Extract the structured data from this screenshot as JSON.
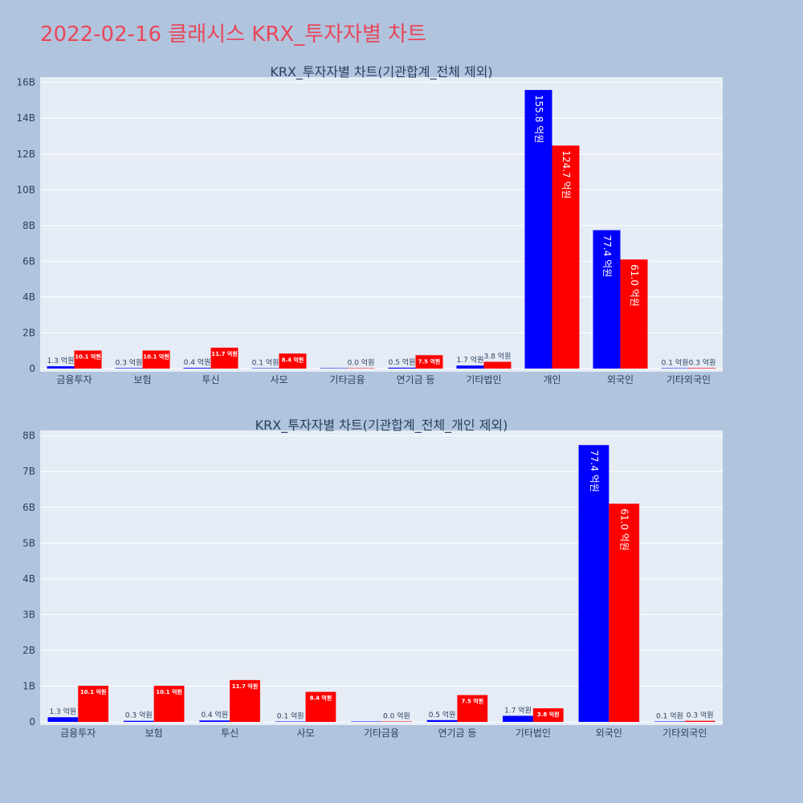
{
  "page": {
    "title": "2022-02-16 클래시스 KRX_투자자별 차트"
  },
  "colors": {
    "buy": "#0000ff",
    "sell": "#ff0000",
    "plot_bg": "#e5ecf6",
    "page_bg": "#b0c4de",
    "title": "#e8475a"
  },
  "chart_data": [
    {
      "type": "bar",
      "title": "KRX_투자자별 차트(기관합계_전체 제외)",
      "categories": [
        "금융투자",
        "보험",
        "투신",
        "사모",
        "기타금융",
        "연기금 등",
        "기타법인",
        "개인",
        "외국인",
        "기타외국인"
      ],
      "series": [
        {
          "values": [
            0.13,
            0.03,
            0.04,
            0.01,
            0.0,
            0.05,
            0.17,
            15.58,
            7.74,
            0.01
          ],
          "labels": [
            "1.3 억원",
            "0.3 억원",
            "0.4 억원",
            "0.1 억원",
            "",
            "0.5 억원",
            "1.7 억원",
            "155.8 억원",
            "77.4 억원",
            "0.1 억원"
          ]
        },
        {
          "values": [
            1.01,
            1.01,
            1.17,
            0.84,
            0.0,
            0.75,
            0.38,
            12.47,
            6.1,
            0.03
          ],
          "labels": [
            "10.1 억원",
            "10.1 억원",
            "11.7 억원",
            "8.4 억원",
            "0.0 억원",
            "7.5 억원",
            "3.8 억원",
            "124.7 억원",
            "61.0 억원",
            "0.3 억원"
          ]
        }
      ],
      "ylim": [
        0,
        16.3
      ],
      "yticks": [
        0,
        2,
        4,
        6,
        8,
        10,
        12,
        14,
        16
      ],
      "ytick_labels": [
        "0",
        "2B",
        "4B",
        "6B",
        "8B",
        "10B",
        "12B",
        "14B",
        "16B"
      ],
      "grid": true
    },
    {
      "type": "bar",
      "title": "KRX_투자자별 차트(기관합계_전체_개인 제외)",
      "categories": [
        "금융투자",
        "보험",
        "투신",
        "사모",
        "기타금융",
        "연기금 등",
        "기타법인",
        "외국인",
        "기타외국인"
      ],
      "series": [
        {
          "values": [
            0.13,
            0.03,
            0.04,
            0.01,
            0.0,
            0.05,
            0.17,
            7.74,
            0.01
          ],
          "labels": [
            "1.3 억원",
            "0.3 억원",
            "0.4 억원",
            "0.1 억원",
            "",
            "0.5 억원",
            "1.7 억원",
            "77.4 억원",
            "0.1 억원"
          ]
        },
        {
          "values": [
            1.01,
            1.01,
            1.17,
            0.84,
            0.0,
            0.75,
            0.38,
            6.1,
            0.03
          ],
          "labels": [
            "10.1 억원",
            "10.1 억원",
            "11.7 억원",
            "8.4 억원",
            "0.0 억원",
            "7.5 억원",
            "3.8 억원",
            "61.0 억원",
            "0.3 억원"
          ]
        }
      ],
      "ylim": [
        0,
        8.15
      ],
      "yticks": [
        0,
        1,
        2,
        3,
        4,
        5,
        6,
        7,
        8
      ],
      "ytick_labels": [
        "0",
        "1B",
        "2B",
        "3B",
        "4B",
        "5B",
        "6B",
        "7B",
        "8B"
      ],
      "grid": true
    }
  ]
}
